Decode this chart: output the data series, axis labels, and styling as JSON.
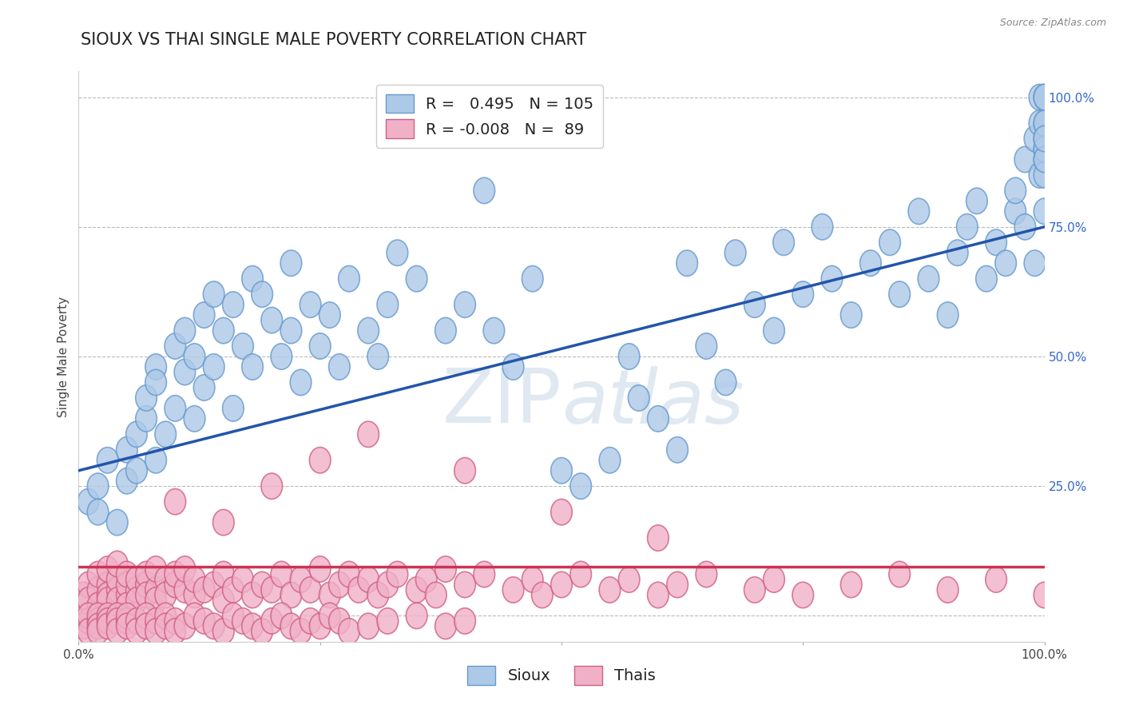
{
  "title": "SIOUX VS THAI SINGLE MALE POVERTY CORRELATION CHART",
  "source_text": "Source: ZipAtlas.com",
  "ylabel": "Single Male Poverty",
  "watermark": "ZIPatlas",
  "xmin": 0.0,
  "xmax": 1.0,
  "ymin": -0.05,
  "ymax": 1.05,
  "sioux_R": 0.495,
  "sioux_N": 105,
  "thai_R": -0.008,
  "thai_N": 89,
  "sioux_color": "#adc9e8",
  "sioux_edge": "#6699cc",
  "thai_color": "#f0b0c8",
  "thai_edge": "#d06080",
  "sioux_line_color": "#2255aa",
  "thai_line_color": "#cc3355",
  "grid_color": "#bbbbbb",
  "background_color": "#ffffff",
  "title_fontsize": 15,
  "axis_label_fontsize": 11,
  "tick_fontsize": 11,
  "legend_fontsize": 14,
  "sioux_line_y0": 0.28,
  "sioux_line_y1": 0.75,
  "thai_line_y0": 0.095,
  "thai_line_y1": 0.095,
  "sioux_scatter_x": [
    0.01,
    0.02,
    0.02,
    0.03,
    0.04,
    0.05,
    0.05,
    0.06,
    0.06,
    0.07,
    0.07,
    0.08,
    0.08,
    0.08,
    0.09,
    0.1,
    0.1,
    0.11,
    0.11,
    0.12,
    0.12,
    0.13,
    0.13,
    0.14,
    0.14,
    0.15,
    0.16,
    0.16,
    0.17,
    0.18,
    0.18,
    0.19,
    0.2,
    0.21,
    0.22,
    0.22,
    0.23,
    0.24,
    0.25,
    0.26,
    0.27,
    0.28,
    0.3,
    0.31,
    0.32,
    0.33,
    0.35,
    0.38,
    0.4,
    0.42,
    0.43,
    0.45,
    0.47,
    0.5,
    0.52,
    0.55,
    0.57,
    0.58,
    0.6,
    0.62,
    0.63,
    0.65,
    0.67,
    0.68,
    0.7,
    0.72,
    0.73,
    0.75,
    0.77,
    0.78,
    0.8,
    0.82,
    0.84,
    0.85,
    0.87,
    0.88,
    0.9,
    0.91,
    0.92,
    0.93,
    0.94,
    0.95,
    0.96,
    0.97,
    0.97,
    0.98,
    0.98,
    0.99,
    0.99,
    0.995,
    0.995,
    0.995,
    1.0,
    1.0,
    1.0,
    1.0,
    1.0,
    1.0,
    1.0,
    1.0,
    1.0,
    1.0,
    1.0,
    1.0,
    1.0
  ],
  "sioux_scatter_y": [
    0.22,
    0.25,
    0.2,
    0.3,
    0.18,
    0.32,
    0.26,
    0.35,
    0.28,
    0.38,
    0.42,
    0.3,
    0.48,
    0.45,
    0.35,
    0.4,
    0.52,
    0.47,
    0.55,
    0.38,
    0.5,
    0.58,
    0.44,
    0.48,
    0.62,
    0.55,
    0.4,
    0.6,
    0.52,
    0.65,
    0.48,
    0.62,
    0.57,
    0.5,
    0.55,
    0.68,
    0.45,
    0.6,
    0.52,
    0.58,
    0.48,
    0.65,
    0.55,
    0.5,
    0.6,
    0.7,
    0.65,
    0.55,
    0.6,
    0.82,
    0.55,
    0.48,
    0.65,
    0.28,
    0.25,
    0.3,
    0.5,
    0.42,
    0.38,
    0.32,
    0.68,
    0.52,
    0.45,
    0.7,
    0.6,
    0.55,
    0.72,
    0.62,
    0.75,
    0.65,
    0.58,
    0.68,
    0.72,
    0.62,
    0.78,
    0.65,
    0.58,
    0.7,
    0.75,
    0.8,
    0.65,
    0.72,
    0.68,
    0.78,
    0.82,
    0.75,
    0.88,
    0.92,
    0.68,
    0.95,
    1.0,
    0.85,
    0.9,
    0.95,
    1.0,
    0.92,
    0.88,
    1.0,
    0.85,
    0.78,
    0.9,
    0.95,
    1.0,
    0.88,
    0.92
  ],
  "thai_scatter_x": [
    0.005,
    0.01,
    0.01,
    0.02,
    0.02,
    0.02,
    0.03,
    0.03,
    0.03,
    0.03,
    0.04,
    0.04,
    0.04,
    0.04,
    0.05,
    0.05,
    0.05,
    0.05,
    0.06,
    0.06,
    0.06,
    0.07,
    0.07,
    0.07,
    0.08,
    0.08,
    0.08,
    0.09,
    0.09,
    0.1,
    0.1,
    0.11,
    0.11,
    0.12,
    0.12,
    0.13,
    0.14,
    0.15,
    0.15,
    0.16,
    0.17,
    0.18,
    0.19,
    0.2,
    0.21,
    0.22,
    0.23,
    0.24,
    0.25,
    0.26,
    0.27,
    0.28,
    0.29,
    0.3,
    0.31,
    0.32,
    0.33,
    0.35,
    0.36,
    0.37,
    0.38,
    0.4,
    0.42,
    0.45,
    0.47,
    0.48,
    0.5,
    0.52,
    0.55,
    0.57,
    0.6,
    0.62,
    0.65,
    0.7,
    0.72,
    0.75,
    0.8,
    0.85,
    0.9,
    0.95,
    1.0,
    0.1,
    0.15,
    0.2,
    0.25,
    0.3,
    0.4,
    0.5,
    0.6
  ],
  "thai_scatter_y": [
    0.04,
    0.06,
    0.03,
    0.05,
    0.08,
    0.02,
    0.06,
    0.04,
    0.09,
    0.03,
    0.05,
    0.07,
    0.03,
    0.1,
    0.04,
    0.06,
    0.08,
    0.02,
    0.05,
    0.07,
    0.03,
    0.06,
    0.08,
    0.04,
    0.05,
    0.09,
    0.03,
    0.07,
    0.04,
    0.06,
    0.08,
    0.05,
    0.09,
    0.04,
    0.07,
    0.05,
    0.06,
    0.03,
    0.08,
    0.05,
    0.07,
    0.04,
    0.06,
    0.05,
    0.08,
    0.04,
    0.07,
    0.05,
    0.09,
    0.04,
    0.06,
    0.08,
    0.05,
    0.07,
    0.04,
    0.06,
    0.08,
    0.05,
    0.07,
    0.04,
    0.09,
    0.06,
    0.08,
    0.05,
    0.07,
    0.04,
    0.06,
    0.08,
    0.05,
    0.07,
    0.04,
    0.06,
    0.08,
    0.05,
    0.07,
    0.04,
    0.06,
    0.08,
    0.05,
    0.07,
    0.04,
    0.22,
    0.18,
    0.25,
    0.3,
    0.35,
    0.28,
    0.2,
    0.15
  ],
  "thai_low_x": [
    0.005,
    0.01,
    0.01,
    0.01,
    0.02,
    0.02,
    0.02,
    0.02,
    0.03,
    0.03,
    0.03,
    0.04,
    0.04,
    0.04,
    0.05,
    0.05,
    0.05,
    0.06,
    0.06,
    0.07,
    0.07,
    0.08,
    0.08,
    0.09,
    0.09,
    0.1,
    0.1,
    0.11,
    0.12,
    0.13,
    0.14,
    0.15,
    0.16,
    0.17,
    0.18,
    0.19,
    0.2,
    0.21,
    0.22,
    0.23,
    0.24,
    0.25,
    0.26,
    0.27,
    0.28,
    0.3,
    0.32,
    0.35,
    0.38,
    0.4
  ],
  "thai_low_y": [
    -0.02,
    -0.01,
    0.0,
    -0.03,
    -0.01,
    0.0,
    -0.02,
    -0.03,
    0.0,
    -0.01,
    -0.02,
    0.0,
    -0.01,
    -0.03,
    -0.01,
    0.0,
    -0.02,
    -0.01,
    -0.03,
    0.0,
    -0.02,
    -0.01,
    -0.03,
    0.0,
    -0.02,
    -0.01,
    -0.03,
    -0.02,
    0.0,
    -0.01,
    -0.02,
    -0.03,
    0.0,
    -0.01,
    -0.02,
    -0.03,
    -0.01,
    0.0,
    -0.02,
    -0.03,
    -0.01,
    -0.02,
    0.0,
    -0.01,
    -0.03,
    -0.02,
    -0.01,
    0.0,
    -0.02,
    -0.01
  ],
  "y_tick_positions": [
    0.0,
    0.25,
    0.5,
    0.75,
    1.0
  ],
  "y_tick_labels": [
    "",
    "25.0%",
    "50.0%",
    "75.0%",
    "100.0%"
  ],
  "x_tick_positions": [
    0.0,
    0.25,
    0.5,
    0.75,
    1.0
  ],
  "x_tick_labels": [
    "0.0%",
    "",
    "",
    "",
    "100.0%"
  ]
}
